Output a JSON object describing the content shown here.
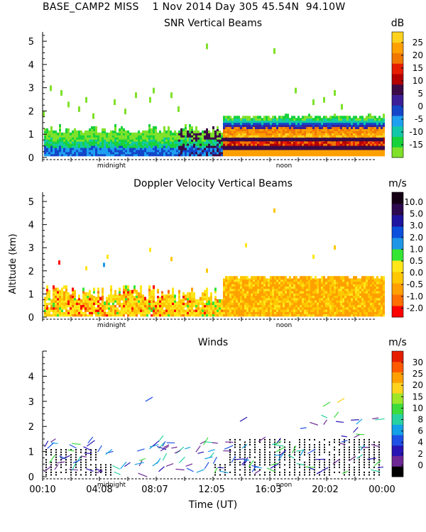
{
  "header": {
    "station": "BASE_CAMP2 MISS",
    "date": "1 Nov 2014 Day 305",
    "lat": "45.54N",
    "lon": "94.10W"
  },
  "colors": {
    "snr": [
      "#7fe12a",
      "#18d23c",
      "#12c8a8",
      "#1ea0f0",
      "#1446c8",
      "#3c1e96",
      "#3c0a46",
      "#b40000",
      "#e61e00",
      "#f07800",
      "#ffa000",
      "#ffd21e"
    ],
    "doppler": [
      "#ff0000",
      "#ff6e00",
      "#ffa000",
      "#ffc800",
      "#ffe619",
      "#33e633",
      "#1e96e6",
      "#0a50dc",
      "#1e14a0",
      "#2d0a50",
      "#140014"
    ],
    "winds": [
      "#000000",
      "#6e2896",
      "#2814b4",
      "#1e50e6",
      "#14a0e6",
      "#28d2a0",
      "#3cdc3c",
      "#a0e628",
      "#ffd21e",
      "#ffa000",
      "#ff5a00",
      "#e61e00"
    ]
  },
  "chart_data": [
    {
      "type": "heatmap",
      "title": "SNR Vertical Beams",
      "units": "dB",
      "ylabel": "",
      "ylim": [
        0,
        5.4
      ],
      "yticks": [
        "0",
        "1",
        "2",
        "3",
        "4",
        "5"
      ],
      "colorbar_ticks": [
        "25",
        "20",
        "15",
        "10",
        "5",
        "0",
        "-5",
        "-10",
        "-15"
      ],
      "colorbar_range": [
        -17,
        30
      ],
      "day_markers": [
        "midnight",
        "noon"
      ]
    },
    {
      "type": "heatmap",
      "title": "Doppler Velocity Vertical Beams",
      "units": "m/s",
      "ylabel": "Altitude (km)",
      "ylim": [
        0,
        5.4
      ],
      "yticks": [
        "0",
        "1",
        "2",
        "3",
        "4",
        "5"
      ],
      "colorbar_ticks": [
        "10.0",
        "5.0",
        "3.0",
        "2.0",
        "1.0",
        "0.5",
        "0.0",
        "-0.5",
        "-1.0",
        "-2.0"
      ],
      "day_markers": [
        "midnight",
        "noon"
      ]
    },
    {
      "type": "scatter",
      "title": "Winds",
      "units": "m/s",
      "ylabel": "",
      "xlabel": "Time (UT)",
      "ylim": [
        0,
        5
      ],
      "yticks": [
        "0",
        "1",
        "2",
        "3",
        "4"
      ],
      "xticks": [
        "00:10",
        "04:08",
        "08:07",
        "12:05",
        "16:03",
        "20:02",
        "00:00"
      ],
      "colorbar_ticks": [
        "30",
        "25",
        "20",
        "15",
        "10",
        "8",
        "6",
        "4",
        "2",
        "0"
      ],
      "colorbar_range": [
        0,
        33
      ],
      "day_markers": [
        "midnight",
        "noon"
      ]
    }
  ]
}
